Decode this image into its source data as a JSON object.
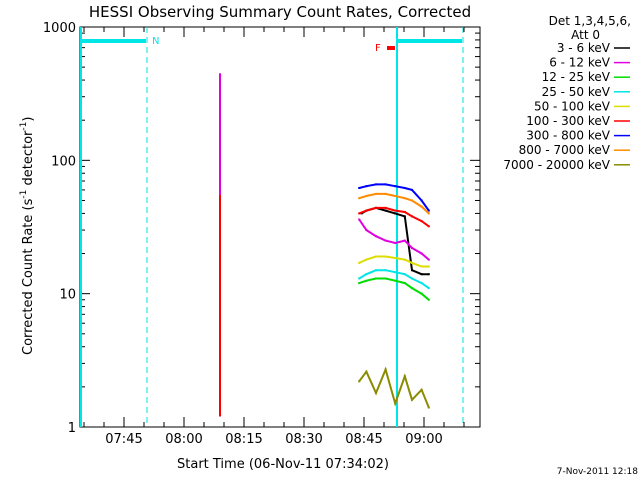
{
  "chart_data": {
    "type": "line",
    "title": "HESSI Observing Summary Count Rates, Corrected",
    "xlabel": "Start Time (06-Nov-11 07:34:02)",
    "ylabel_main": "Corrected Count Rate (s",
    "ylabel_sup1": "-1",
    "ylabel_mid": " detector",
    "ylabel_sup2": "-1",
    "ylabel_end": ")",
    "y_scale": "log",
    "ylim": [
      1,
      1000
    ],
    "xlim": [
      "07:34",
      "09:14"
    ],
    "x_ticks": [
      "07:45",
      "08:00",
      "08:15",
      "08:30",
      "08:45",
      "09:00"
    ],
    "y_ticks": [
      "1",
      "10",
      "100",
      "1000"
    ],
    "legend": {
      "placement": "right",
      "header": [
        "Det 1,3,4,5,6,",
        "Att 0"
      ],
      "entries": [
        {
          "label": "3 - 6 keV",
          "color": "#000000"
        },
        {
          "label": "6 - 12 keV",
          "color": "#e000e0"
        },
        {
          "label": "12 - 25 keV",
          "color": "#00dd00"
        },
        {
          "label": "25 - 50 keV",
          "color": "#00e5e5"
        },
        {
          "label": "50 - 100 keV",
          "color": "#dddd00"
        },
        {
          "label": "100 - 300 keV",
          "color": "#ff0000"
        },
        {
          "label": "300 - 800 keV",
          "color": "#0000ff"
        },
        {
          "label": "800 - 7000 keV",
          "color": "#ff8c00"
        },
        {
          "label": "7000 - 20000 keV",
          "color": "#8b8b00"
        }
      ]
    },
    "annotations": {
      "night_label": "N",
      "flare_label": "F",
      "timestamp": "7-Nov-2011 12:18"
    },
    "series": [
      {
        "name": "3 - 6 keV",
        "color": "#000000",
        "points": [
          [
            8.15,
            1.2
          ],
          [
            8.15,
            45
          ]
        ],
        "x2": [
          [
            8.74,
            40
          ],
          [
            8.76,
            42
          ],
          [
            8.8,
            44
          ],
          [
            8.84,
            42
          ],
          [
            8.88,
            40
          ],
          [
            8.92,
            38
          ],
          [
            8.95,
            15
          ],
          [
            8.99,
            14
          ],
          [
            9.02,
            14
          ]
        ]
      },
      {
        "name": "6 - 12 keV",
        "color": "#e000e0",
        "points": [
          [
            8.15,
            1.2
          ],
          [
            8.15,
            450
          ]
        ],
        "x2": [
          [
            8.73,
            36
          ],
          [
            8.76,
            30
          ],
          [
            8.8,
            27
          ],
          [
            8.84,
            25
          ],
          [
            8.88,
            24
          ],
          [
            8.92,
            25
          ],
          [
            8.95,
            22
          ],
          [
            8.99,
            20
          ],
          [
            9.02,
            18
          ]
        ]
      },
      {
        "name": "12 - 25 keV",
        "color": "#00dd00",
        "points": [],
        "x2": [
          [
            8.73,
            12
          ],
          [
            8.76,
            12.5
          ],
          [
            8.8,
            13
          ],
          [
            8.84,
            13
          ],
          [
            8.88,
            12.5
          ],
          [
            8.92,
            12
          ],
          [
            8.95,
            11
          ],
          [
            8.99,
            10
          ],
          [
            9.02,
            9
          ]
        ]
      },
      {
        "name": "25 - 50 keV",
        "color": "#00e5e5",
        "points": [],
        "x2": [
          [
            8.73,
            13
          ],
          [
            8.76,
            14
          ],
          [
            8.8,
            15
          ],
          [
            8.84,
            15
          ],
          [
            8.88,
            14.5
          ],
          [
            8.92,
            14
          ],
          [
            8.95,
            13
          ],
          [
            8.99,
            12
          ],
          [
            9.02,
            11
          ]
        ]
      },
      {
        "name": "50 - 100 keV",
        "color": "#dddd00",
        "points": [],
        "x2": [
          [
            8.73,
            17
          ],
          [
            8.76,
            18
          ],
          [
            8.8,
            19
          ],
          [
            8.84,
            19
          ],
          [
            8.88,
            18.5
          ],
          [
            8.92,
            18
          ],
          [
            8.95,
            17
          ],
          [
            8.99,
            16
          ],
          [
            9.02,
            16
          ]
        ]
      },
      {
        "name": "100 - 300 keV",
        "color": "#ff0000",
        "points": [
          [
            8.15,
            1.2
          ],
          [
            8.15,
            55
          ]
        ],
        "x2": [
          [
            8.73,
            40
          ],
          [
            8.76,
            42
          ],
          [
            8.8,
            44
          ],
          [
            8.84,
            44
          ],
          [
            8.88,
            42
          ],
          [
            8.92,
            41
          ],
          [
            8.95,
            38
          ],
          [
            8.99,
            35
          ],
          [
            9.02,
            32
          ]
        ]
      },
      {
        "name": "300 - 800 keV",
        "color": "#0000ff",
        "points": [],
        "x2": [
          [
            8.73,
            62
          ],
          [
            8.76,
            64
          ],
          [
            8.8,
            66
          ],
          [
            8.84,
            66
          ],
          [
            8.88,
            64
          ],
          [
            8.92,
            62
          ],
          [
            8.95,
            60
          ],
          [
            8.99,
            50
          ],
          [
            9.02,
            42
          ]
        ]
      },
      {
        "name": "800 - 7000 keV",
        "color": "#ff8c00",
        "points": [],
        "x2": [
          [
            8.73,
            52
          ],
          [
            8.76,
            54
          ],
          [
            8.8,
            56
          ],
          [
            8.84,
            56
          ],
          [
            8.88,
            54
          ],
          [
            8.92,
            52
          ],
          [
            8.95,
            50
          ],
          [
            8.99,
            45
          ],
          [
            9.02,
            40
          ]
        ]
      },
      {
        "name": "7000 - 20000 keV",
        "color": "#8b8b00",
        "points": [],
        "x2": [
          [
            8.73,
            2.2
          ],
          [
            8.76,
            2.6
          ],
          [
            8.8,
            1.8
          ],
          [
            8.84,
            2.7
          ],
          [
            8.88,
            1.5
          ],
          [
            8.92,
            2.4
          ],
          [
            8.95,
            1.6
          ],
          [
            8.99,
            1.9
          ],
          [
            9.02,
            1.4
          ]
        ]
      }
    ]
  }
}
